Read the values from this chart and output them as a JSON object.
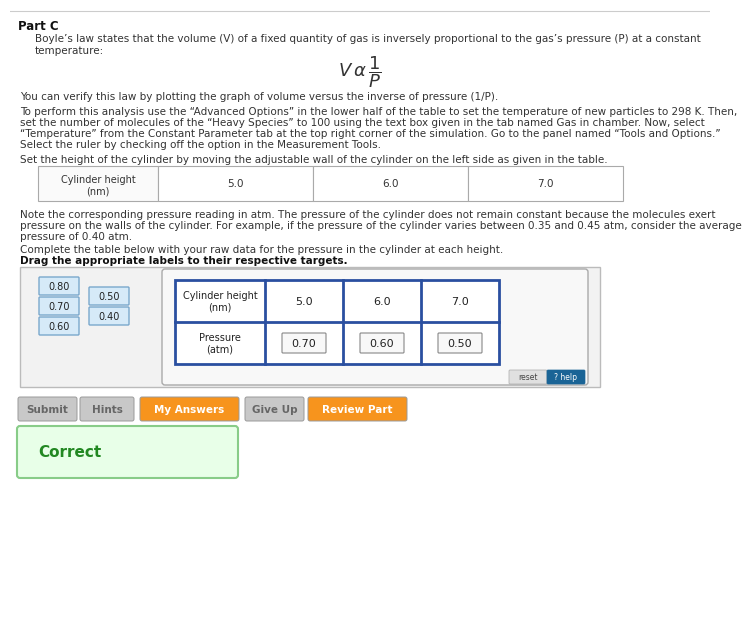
{
  "bg_color": "#ffffff",
  "title": "Part C",
  "p1": "Boyle’s law states that the volume (V) of a fixed quantity of gas is inversely proportional to the gas’s pressure (P) at a constant\ntemperature:",
  "p2": "You can verify this law by plotting the graph of volume versus the inverse of pressure (1/P).",
  "p3a": "To perform this analysis use the “Advanced Options” in the lower half of the table to set the temperature of new particles to 298 K. Then,",
  "p3b": "set the number of molecules of the “Heavy Species” to 100 using the text box given in the tab named Gas in chamber. Now, select",
  "p3c": "“Temperature” from the Constant Parameter tab at the top right corner of the simulation. Go to the panel named “Tools and Options.”",
  "p3d": "Select the ruler by checking off the option in the Measurement Tools.",
  "p4": "Set the height of the cylinder by moving the adjustable wall of the cylinder on the left side as given in the table.",
  "t1_heights": [
    "5.0",
    "6.0",
    "7.0"
  ],
  "p5a": "Note the corresponding pressure reading in atm. The pressure of the cylinder does not remain constant because the molecules exert",
  "p5b": "pressure on the walls of the cylinder. For example, if the pressure of the cylinder varies between 0.35 and 0.45 atm, consider the average",
  "p5c": "pressure of 0.40 atm.",
  "p6": "Complete the table below with your raw data for the pressure in the cylinder at each height.",
  "p7": "Drag the appropriate labels to their respective targets.",
  "drag_col1": [
    "0.80",
    "0.70",
    "0.60"
  ],
  "drag_col2": [
    "0.50",
    "0.40"
  ],
  "t2_heights": [
    "5.0",
    "6.0",
    "7.0"
  ],
  "t2_pressures": [
    "0.70",
    "0.60",
    "0.50"
  ],
  "btn_labels": [
    "Submit",
    "Hints",
    "My Answers",
    "Give Up",
    "Review Part"
  ],
  "btn_colors": [
    "#c8c8c8",
    "#c8c8c8",
    "#f7941d",
    "#c8c8c8",
    "#f7941d"
  ],
  "btn_text_colors": [
    "#666666",
    "#666666",
    "#ffffff",
    "#666666",
    "#ffffff"
  ],
  "correct_text": "Correct",
  "correct_color": "#228822",
  "correct_bg": "#e8ffe8",
  "correct_border": "#88cc88"
}
